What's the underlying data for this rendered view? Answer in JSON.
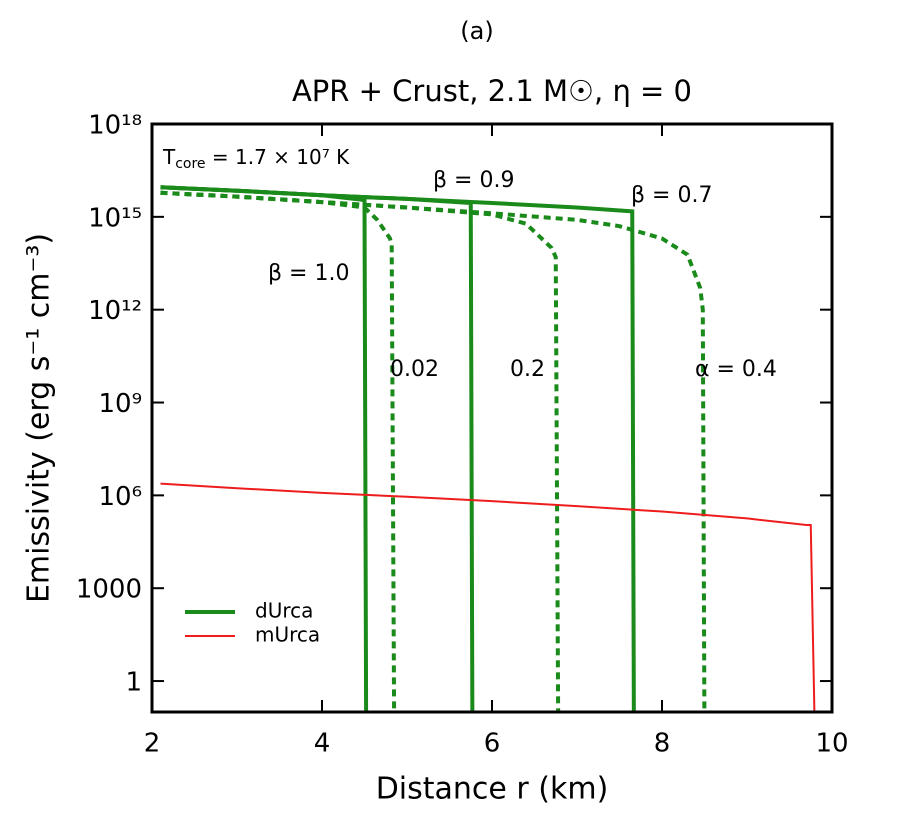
{
  "chart_data": {
    "type": "line",
    "panel_label": "(a)",
    "title": "APR + Crust, 2.1 M☉, η = 0",
    "xlabel": "Distance r (km)",
    "ylabel": "Emissivity (erg s⁻¹ cm⁻³)",
    "xlim": [
      2,
      10
    ],
    "xticks": [
      2,
      4,
      6,
      8,
      10
    ],
    "ylog": true,
    "ylim": [
      0.1,
      1e+18
    ],
    "yticks": [
      {
        "value": 1e+18,
        "label": "10¹⁸"
      },
      {
        "value": 1000000000000000.0,
        "label": "10¹⁵"
      },
      {
        "value": 1000000000000.0,
        "label": "10¹²"
      },
      {
        "value": 1000000000.0,
        "label": "10⁹"
      },
      {
        "value": 1000000.0,
        "label": "10⁶"
      },
      1000,
      1
    ],
    "legend": "lower left",
    "temperature_note": {
      "symbol": "T",
      "subscript": "core",
      "text": " = 1.7 × 10⁷ K"
    },
    "annotations": [
      "β = 0.9",
      "β = 0.7",
      "β = 1.0",
      "0.02",
      "0.2",
      "α = 0.4"
    ],
    "series": [
      {
        "name": "dUrca",
        "color": "#1a8a1a",
        "lines": [
          {
            "style": "solid",
            "x": [
              2.1,
              3,
              4,
              4.5,
              4.52
            ],
            "values": [
              9000000000000000.0,
              7000000000000000.0,
              5000000000000000.0,
              3500000000000000.0,
              0.01
            ]
          },
          {
            "style": "solid",
            "x": [
              2.1,
              3,
              4,
              5,
              5.75,
              5.77
            ],
            "values": [
              9000000000000000.0,
              7000000000000000.0,
              5000000000000000.0,
              3800000000000000.0,
              2800000000000000.0,
              0.01
            ]
          },
          {
            "style": "solid",
            "x": [
              2.1,
              3,
              4,
              5,
              6,
              7,
              7.65,
              7.67
            ],
            "values": [
              9000000000000000.0,
              7000000000000000.0,
              5000000000000000.0,
              3800000000000000.0,
              2800000000000000.0,
              2000000000000000.0,
              1500000000000000.0,
              0.01
            ]
          },
          {
            "style": "dashed",
            "x": [
              2.1,
              3,
              4,
              4.5,
              4.65,
              4.8,
              4.82,
              4.85
            ],
            "values": [
              6000000000000000.0,
              4500000000000000.0,
              3000000000000000.0,
              2000000000000000.0,
              800000000000000.0,
              200000000000000.0,
              120000000000000.0,
              0.01
            ]
          },
          {
            "style": "dashed",
            "x": [
              2.1,
              3,
              4,
              5,
              6,
              6.4,
              6.7,
              6.75,
              6.78
            ],
            "values": [
              6000000000000000.0,
              4500000000000000.0,
              3000000000000000.0,
              2000000000000000.0,
              1200000000000000.0,
              600000000000000.0,
              100000000000000.0,
              50000000000000.0,
              0.01
            ]
          },
          {
            "style": "dashed",
            "x": [
              2.1,
              3,
              4,
              5,
              6,
              7,
              7.5,
              8,
              8.3,
              8.45,
              8.48,
              8.5
            ],
            "values": [
              6000000000000000.0,
              4500000000000000.0,
              3000000000000000.0,
              2000000000000000.0,
              1300000000000000.0,
              800000000000000.0,
              500000000000000.0,
              200000000000000.0,
              60000000000000.0,
              5000000000000.0,
              1000000000000.0,
              0.01
            ]
          }
        ]
      },
      {
        "name": "mUrca",
        "color": "#ee1c1c",
        "lines": [
          {
            "style": "thin",
            "x": [
              2.1,
              3,
              4,
              5,
              6,
              7,
              8,
              9,
              9.7,
              9.75,
              9.8
            ],
            "values": [
              2400000.0,
              1700000.0,
              1200000.0,
              900000.0,
              650000.0,
              450000.0,
              300000.0,
              180000.0,
              110000.0,
              110000.0,
              0.01
            ]
          }
        ]
      }
    ]
  }
}
